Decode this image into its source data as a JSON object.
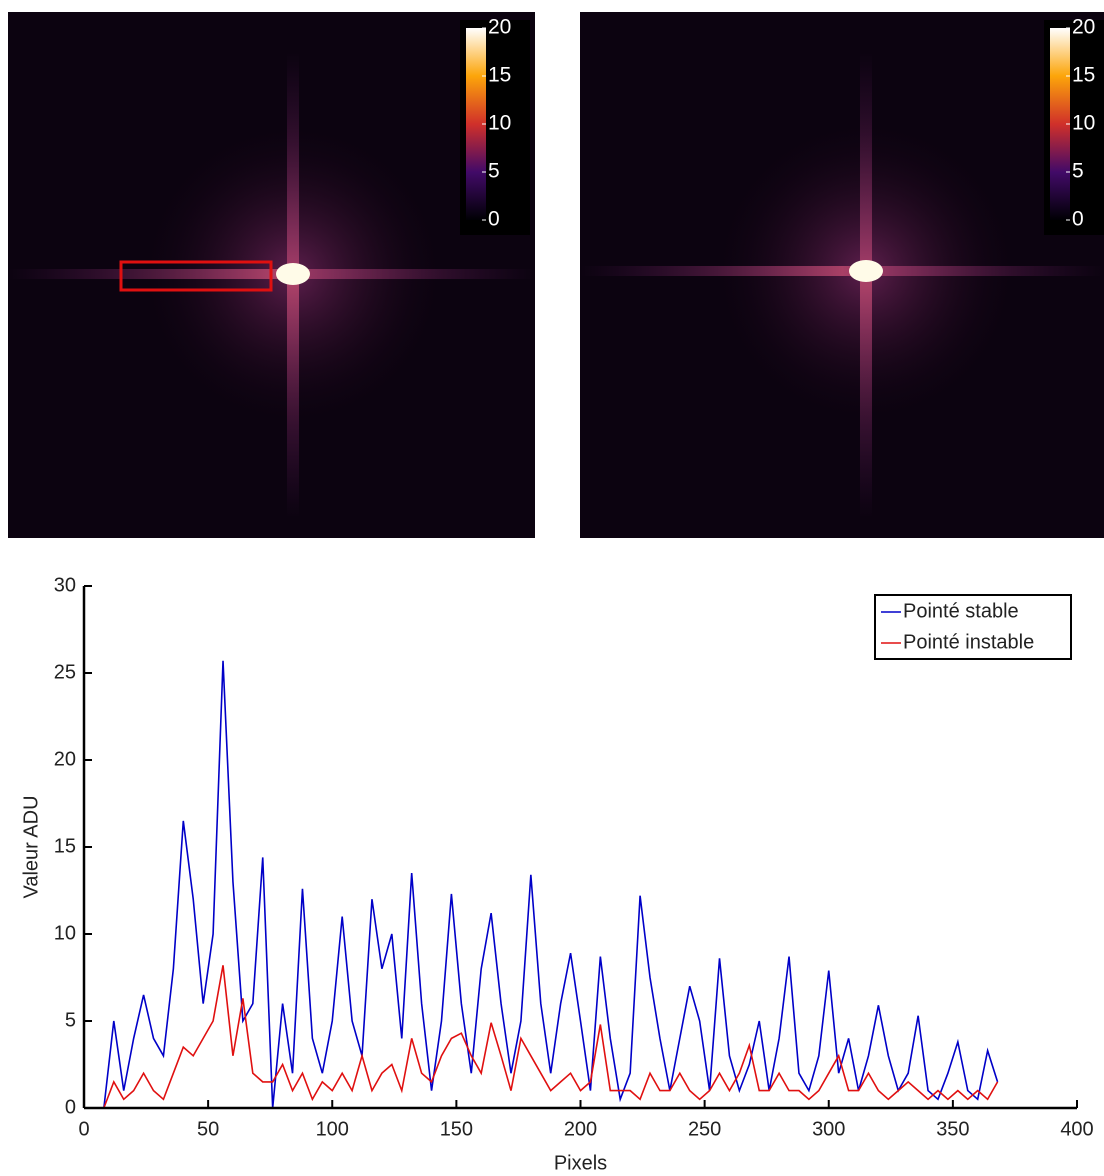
{
  "chart_data": [
    {
      "type": "image",
      "clim": [
        0,
        20
      ],
      "cticks": [
        0,
        5,
        10,
        15,
        20
      ]
    },
    {
      "type": "image",
      "clim": [
        0,
        20
      ],
      "cticks": [
        0,
        5,
        10,
        15,
        20
      ]
    },
    {
      "type": "line",
      "xlabel": "Pixels",
      "ylabel": "Valeur ADU",
      "xlim": [
        0,
        400
      ],
      "ylim": [
        0,
        30
      ],
      "xticks": [
        0,
        50,
        100,
        150,
        200,
        250,
        300,
        350,
        400
      ],
      "yticks": [
        0,
        5,
        10,
        15,
        20,
        25,
        30
      ],
      "legend": "upper right",
      "x": [
        0,
        4,
        8,
        12,
        16,
        20,
        24,
        28,
        32,
        36,
        40,
        44,
        48,
        52,
        56,
        60,
        64,
        68,
        72,
        76,
        80,
        84,
        88,
        92,
        96,
        100,
        104,
        108,
        112,
        116,
        120,
        124,
        128,
        132,
        136,
        140,
        144,
        148,
        152,
        156,
        160,
        164,
        168,
        172,
        176,
        180,
        184,
        188,
        192,
        196,
        200,
        204,
        208,
        212,
        216,
        220,
        224,
        228,
        232,
        236,
        240,
        244,
        248,
        252,
        256,
        260,
        264,
        268,
        272,
        276,
        280,
        284,
        288,
        292,
        296,
        300,
        304,
        308,
        312,
        316,
        320,
        324,
        328,
        332,
        336,
        340,
        344,
        348,
        352,
        356,
        360,
        364,
        368
      ],
      "series": [
        {
          "name": "Pointé stable",
          "color": "#0000c8",
          "values": [
            0,
            0,
            0,
            5,
            1,
            4,
            6.5,
            4,
            3,
            8,
            16.5,
            12,
            6,
            10,
            25.7,
            13,
            5,
            6,
            14.4,
            0,
            6,
            2,
            12.6,
            4,
            2,
            5,
            11,
            5,
            3,
            12,
            8,
            10,
            4,
            13.5,
            6,
            1,
            5,
            12.3,
            6,
            2,
            8,
            11.2,
            6,
            2,
            5,
            13.4,
            6,
            2,
            6,
            8.9,
            5,
            1,
            8.7,
            4,
            0.5,
            2,
            12.2,
            7.5,
            4,
            1,
            4,
            7,
            5,
            1,
            8.6,
            3,
            1,
            2.5,
            5,
            1,
            4,
            8.7,
            2,
            1,
            3,
            7.9,
            2,
            4,
            1,
            3,
            5.9,
            3,
            1,
            2,
            5.3,
            1,
            0.5,
            2,
            3.8,
            1,
            0.5,
            3.3,
            1.5
          ]
        },
        {
          "name": "Pointé instable",
          "color": "#e01010",
          "values": [
            0,
            0,
            0,
            1.5,
            0.5,
            1,
            2,
            1,
            0.5,
            2,
            3.5,
            3,
            4,
            5,
            8.2,
            3,
            6.3,
            2,
            1.5,
            1.5,
            2.5,
            1,
            2,
            0.5,
            1.5,
            1,
            2,
            1,
            3,
            1,
            2,
            2.5,
            1,
            4,
            2,
            1.5,
            3,
            4,
            4.3,
            3,
            2,
            4.9,
            3,
            1,
            4,
            3,
            2,
            1,
            1.5,
            2,
            1,
            1.5,
            4.8,
            1,
            1,
            1,
            0.5,
            2,
            1,
            1,
            2,
            1,
            0.5,
            1,
            2,
            1,
            2,
            3.6,
            1,
            1,
            2,
            1,
            1,
            0.5,
            1,
            2,
            3,
            1,
            1,
            2,
            1,
            0.5,
            1,
            1.5,
            1,
            0.5,
            1,
            0.5,
            1,
            0.5,
            1,
            0.5,
            1.5
          ]
        }
      ]
    }
  ]
}
